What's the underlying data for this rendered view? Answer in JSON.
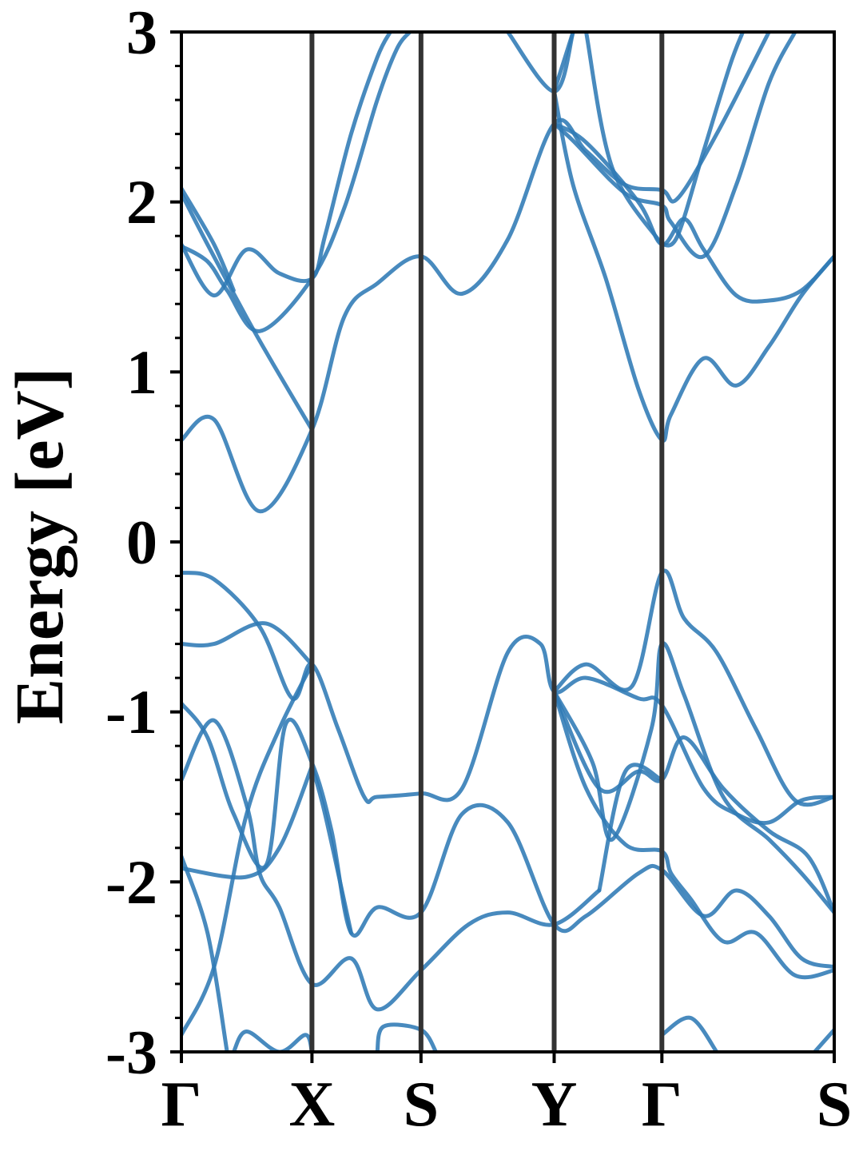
{
  "chart_data": {
    "type": "line",
    "title": "",
    "xlabel": "",
    "ylabel": "Energy [eV]",
    "ylim": [
      -3,
      3
    ],
    "yticks": [
      3,
      2,
      1,
      0,
      -1,
      -2,
      -3
    ],
    "ytick_labels": [
      "3",
      "2",
      "1",
      "0",
      "-1",
      "-2",
      "-3"
    ],
    "ticks": [
      {
        "label": "Γ",
        "x": 0
      },
      {
        "label": "X",
        "x": 0.2
      },
      {
        "label": "S",
        "x": 0.367
      },
      {
        "label": "Y",
        "x": 0.571
      },
      {
        "label": "Γ",
        "x": 0.736
      },
      {
        "label": "S",
        "x": 1.0
      }
    ],
    "grid": false,
    "band_color": "#2f7ab5",
    "symmetry_line_color": "#333333",
    "bands": [
      {
        "name": "",
        "points": [
          [
            0,
            0.6
          ],
          [
            0.05,
            0.72
          ],
          [
            0.12,
            0.18
          ],
          [
            0.2,
            0.66
          ],
          [
            0.25,
            1.33
          ],
          [
            0.3,
            1.52
          ],
          [
            0.367,
            1.68
          ],
          [
            0.43,
            1.46
          ],
          [
            0.5,
            1.78
          ],
          [
            0.571,
            2.46
          ],
          [
            0.62,
            2.3
          ],
          [
            0.68,
            2.1
          ],
          [
            0.736,
            2.07
          ],
          [
            0.76,
            2.02
          ],
          [
            0.82,
            2.4
          ],
          [
            0.9,
            3.0
          ]
        ]
      },
      {
        "name": "",
        "points": [
          [
            0,
            1.74
          ],
          [
            0.04,
            1.65
          ],
          [
            0.07,
            1.48
          ],
          [
            0.12,
            1.24
          ],
          [
            0.2,
            1.55
          ],
          [
            0.25,
            1.97
          ],
          [
            0.3,
            2.6
          ],
          [
            0.33,
            2.9
          ],
          [
            0.35,
            3.0
          ]
        ]
      },
      {
        "name": "",
        "points": [
          [
            0,
            1.75
          ],
          [
            0.05,
            1.45
          ],
          [
            0.1,
            1.72
          ],
          [
            0.15,
            1.58
          ],
          [
            0.2,
            1.55
          ],
          [
            0.22,
            1.8
          ],
          [
            0.26,
            2.4
          ],
          [
            0.3,
            2.85
          ],
          [
            0.32,
            3.0
          ]
        ]
      },
      {
        "name": "",
        "points": [
          [
            0,
            2.05
          ],
          [
            0.04,
            1.75
          ],
          [
            0.1,
            1.32
          ],
          [
            0.14,
            1.05
          ],
          [
            0.2,
            0.66
          ]
        ]
      },
      {
        "name": "",
        "points": [
          [
            0,
            2.08
          ],
          [
            0.05,
            1.75
          ],
          [
            0.08,
            1.48
          ]
        ]
      },
      {
        "name": "",
        "points": [
          [
            0.5,
            3.0
          ],
          [
            0.571,
            2.65
          ],
          [
            0.6,
            3.0
          ]
        ]
      },
      {
        "name": "",
        "points": [
          [
            0.571,
            2.65
          ],
          [
            0.6,
            2.1
          ],
          [
            0.65,
            1.55
          ],
          [
            0.7,
            0.9
          ],
          [
            0.736,
            0.6
          ],
          [
            0.75,
            0.75
          ],
          [
            0.8,
            1.08
          ],
          [
            0.85,
            0.92
          ],
          [
            0.9,
            1.15
          ],
          [
            0.95,
            1.45
          ],
          [
            1.0,
            1.68
          ]
        ]
      },
      {
        "name": "",
        "points": [
          [
            0.571,
            2.46
          ],
          [
            0.62,
            2.35
          ],
          [
            0.7,
            2.0
          ],
          [
            0.736,
            1.75
          ],
          [
            0.77,
            1.9
          ],
          [
            0.8,
            1.72
          ],
          [
            0.85,
            1.45
          ],
          [
            0.9,
            1.42
          ],
          [
            0.95,
            1.48
          ],
          [
            1.0,
            1.68
          ]
        ]
      },
      {
        "name": "",
        "points": [
          [
            0.571,
            2.46
          ],
          [
            0.6,
            2.36
          ],
          [
            0.68,
            2.05
          ],
          [
            0.736,
            1.98
          ],
          [
            0.75,
            1.88
          ],
          [
            0.8,
            1.68
          ],
          [
            0.85,
            2.1
          ],
          [
            0.9,
            2.7
          ],
          [
            0.94,
            3.0
          ]
        ]
      },
      {
        "name": "",
        "points": [
          [
            0.571,
            2.65
          ],
          [
            0.6,
            3.0
          ]
        ]
      },
      {
        "name": "",
        "points": [
          [
            0.736,
            1.75
          ],
          [
            0.76,
            1.8
          ],
          [
            0.8,
            2.3
          ],
          [
            0.84,
            2.8
          ],
          [
            0.86,
            3.0
          ]
        ]
      },
      {
        "name": "",
        "points": [
          [
            0.62,
            3.0
          ],
          [
            0.66,
            2.2
          ],
          [
            0.736,
            1.75
          ]
        ]
      },
      {
        "name": "",
        "points": [
          [
            0,
            -0.18
          ],
          [
            0.05,
            -0.22
          ],
          [
            0.12,
            -0.5
          ],
          [
            0.17,
            -0.92
          ],
          [
            0.2,
            -0.72
          ],
          [
            0.24,
            -1.1
          ],
          [
            0.28,
            -1.5
          ],
          [
            0.3,
            -1.5
          ],
          [
            0.367,
            -1.48
          ],
          [
            0.43,
            -1.45
          ],
          [
            0.5,
            -0.65
          ],
          [
            0.55,
            -0.6
          ],
          [
            0.571,
            -0.88
          ],
          [
            0.62,
            -0.8
          ],
          [
            0.7,
            -0.92
          ],
          [
            0.736,
            -0.96
          ],
          [
            0.8,
            -1.45
          ],
          [
            0.85,
            -1.6
          ],
          [
            0.9,
            -1.65
          ],
          [
            0.95,
            -1.52
          ],
          [
            1.0,
            -1.5
          ]
        ]
      },
      {
        "name": "",
        "points": [
          [
            0,
            -0.6
          ],
          [
            0.05,
            -0.6
          ],
          [
            0.13,
            -0.48
          ],
          [
            0.2,
            -0.72
          ]
        ]
      },
      {
        "name": "",
        "points": [
          [
            0.571,
            -0.88
          ],
          [
            0.62,
            -0.72
          ],
          [
            0.69,
            -0.85
          ],
          [
            0.736,
            -0.18
          ],
          [
            0.77,
            -0.45
          ],
          [
            0.82,
            -0.65
          ],
          [
            0.88,
            -1.1
          ],
          [
            0.94,
            -1.52
          ],
          [
            1.0,
            -1.5
          ]
        ]
      },
      {
        "name": "",
        "points": [
          [
            0.571,
            -0.88
          ],
          [
            0.63,
            -1.3
          ],
          [
            0.66,
            -1.75
          ],
          [
            0.72,
            -1.1
          ],
          [
            0.736,
            -0.6
          ],
          [
            0.77,
            -0.9
          ],
          [
            0.83,
            -1.5
          ],
          [
            0.9,
            -1.75
          ],
          [
            0.95,
            -1.95
          ],
          [
            1.0,
            -2.18
          ]
        ]
      },
      {
        "name": "",
        "points": [
          [
            0.571,
            -0.88
          ],
          [
            0.64,
            -1.45
          ],
          [
            0.7,
            -1.35
          ],
          [
            0.736,
            -1.4
          ],
          [
            0.77,
            -1.15
          ],
          [
            0.83,
            -1.45
          ],
          [
            0.9,
            -1.7
          ],
          [
            0.96,
            -1.85
          ],
          [
            1.0,
            -2.18
          ]
        ]
      },
      {
        "name": "",
        "points": [
          [
            0.571,
            -0.88
          ],
          [
            0.62,
            -1.45
          ],
          [
            0.68,
            -1.78
          ],
          [
            0.736,
            -1.82
          ],
          [
            0.75,
            -1.95
          ],
          [
            0.78,
            -2.1
          ],
          [
            0.83,
            -2.35
          ],
          [
            0.88,
            -2.3
          ],
          [
            0.94,
            -2.55
          ],
          [
            1.0,
            -2.52
          ]
        ]
      },
      {
        "name": "",
        "points": [
          [
            0,
            -0.95
          ],
          [
            0.04,
            -1.15
          ],
          [
            0.08,
            -1.6
          ],
          [
            0.13,
            -1.9
          ],
          [
            0.16,
            -1.07
          ],
          [
            0.2,
            -1.3
          ],
          [
            0.23,
            -1.7
          ],
          [
            0.26,
            -2.3
          ],
          [
            0.3,
            -2.15
          ],
          [
            0.367,
            -2.18
          ],
          [
            0.43,
            -1.6
          ],
          [
            0.5,
            -1.65
          ],
          [
            0.571,
            -2.25
          ],
          [
            0.62,
            -2.2
          ],
          [
            0.7,
            -1.95
          ],
          [
            0.736,
            -1.93
          ],
          [
            0.8,
            -2.2
          ],
          [
            0.85,
            -2.05
          ],
          [
            0.9,
            -2.2
          ],
          [
            0.95,
            -2.45
          ],
          [
            1.0,
            -2.5
          ]
        ]
      },
      {
        "name": "",
        "points": [
          [
            0,
            -1.4
          ],
          [
            0.05,
            -1.05
          ],
          [
            0.1,
            -1.55
          ],
          [
            0.12,
            -1.95
          ],
          [
            0.15,
            -2.15
          ],
          [
            0.2,
            -2.6
          ],
          [
            0.26,
            -2.45
          ],
          [
            0.3,
            -2.75
          ],
          [
            0.367,
            -2.52
          ],
          [
            0.44,
            -2.25
          ],
          [
            0.5,
            -2.18
          ],
          [
            0.571,
            -2.25
          ],
          [
            0.64,
            -2.05
          ]
        ]
      },
      {
        "name": "",
        "points": [
          [
            0,
            -1.92
          ],
          [
            0.1,
            -1.97
          ],
          [
            0.15,
            -1.8
          ],
          [
            0.2,
            -1.32
          ]
        ]
      },
      {
        "name": "",
        "points": [
          [
            0,
            -2.9
          ],
          [
            0.05,
            -2.5
          ],
          [
            0.1,
            -1.6
          ],
          [
            0.15,
            -1.1
          ],
          [
            0.2,
            -0.72
          ]
        ]
      },
      {
        "name": "",
        "points": [
          [
            0,
            -1.85
          ],
          [
            0.04,
            -2.3
          ],
          [
            0.07,
            -3.0
          ]
        ]
      },
      {
        "name": "",
        "points": [
          [
            0.2,
            -1.32
          ],
          [
            0.22,
            -1.6
          ],
          [
            0.26,
            -2.3
          ]
        ]
      },
      {
        "name": "",
        "points": [
          [
            0.64,
            -2.05
          ],
          [
            0.68,
            -1.35
          ],
          [
            0.736,
            -1.4
          ]
        ]
      },
      {
        "name": "",
        "points": [
          [
            0.08,
            -3.0
          ],
          [
            0.1,
            -2.88
          ],
          [
            0.15,
            -3.0
          ],
          [
            0.19,
            -2.9
          ],
          [
            0.2,
            -3.0
          ]
        ]
      },
      {
        "name": "",
        "points": [
          [
            0.3,
            -3.0
          ],
          [
            0.31,
            -2.85
          ],
          [
            0.367,
            -2.87
          ],
          [
            0.39,
            -3.0
          ]
        ]
      },
      {
        "name": "",
        "points": [
          [
            0.736,
            -2.9
          ],
          [
            0.78,
            -2.8
          ],
          [
            0.82,
            -3.0
          ]
        ]
      },
      {
        "name": "",
        "points": [
          [
            0.97,
            -3.0
          ],
          [
            1.0,
            -2.87
          ]
        ]
      }
    ]
  }
}
